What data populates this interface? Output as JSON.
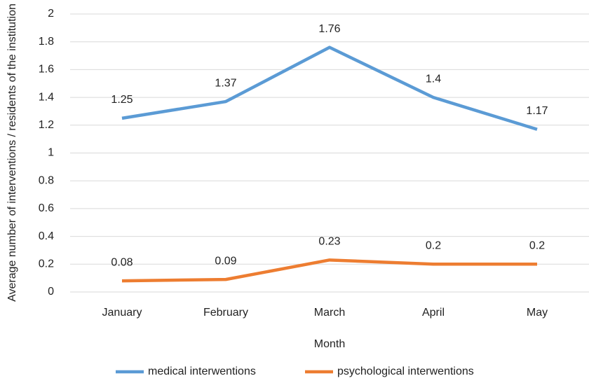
{
  "chart_data": {
    "type": "line",
    "x_label": "Month",
    "y_label": "Average number of interventions / residents of the institution",
    "categories": [
      "January",
      "February",
      "March",
      "April",
      "May"
    ],
    "series": [
      {
        "name": "medical interwentions",
        "color": "#5b9bd5",
        "values": [
          1.25,
          1.37,
          1.76,
          1.4,
          1.17
        ]
      },
      {
        "name": "psychological interwentions",
        "color": "#ed7d31",
        "values": [
          0.08,
          0.09,
          0.23,
          0.2,
          0.2
        ]
      }
    ],
    "ylim": [
      0,
      2
    ],
    "yticks": [
      0,
      0.2,
      0.4,
      0.6,
      0.8,
      1,
      1.2,
      1.4,
      1.6,
      1.8,
      2
    ],
    "grid": true,
    "legend": "bottom"
  }
}
